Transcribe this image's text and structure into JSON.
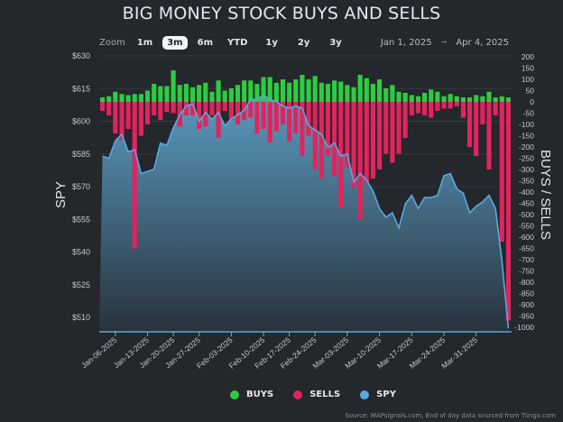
{
  "header": {
    "title": "BIG MONEY STOCK BUYS AND SELLS"
  },
  "toolbar": {
    "zoom_label": "Zoom",
    "buttons": [
      "1m",
      "3m",
      "6m",
      "YTD",
      "1y",
      "2y",
      "3y"
    ],
    "active": "3m",
    "date_from": "Jan 1, 2025",
    "date_arrow": "→",
    "date_to": "Apr 4, 2025"
  },
  "legend": {
    "items": [
      {
        "label": "BUYS",
        "color": "#2ecc40"
      },
      {
        "label": "SELLS",
        "color": "#e0245e"
      },
      {
        "label": "SPY",
        "color": "#5aa9dd"
      }
    ]
  },
  "source": "Source: MAPsignals.com, End of day data sourced from Tiingo.com",
  "chart_data": {
    "type": "bar",
    "title": "BIG MONEY STOCK BUYS AND SELLS",
    "ylabel_left": "SPY",
    "ylabel_right": "BUYS / SELLS",
    "ylim_left": [
      510,
      630
    ],
    "yticks_left": [
      "$630",
      "$615",
      "$600",
      "$585",
      "$570",
      "$555",
      "$540",
      "$525",
      "$510"
    ],
    "ylim_right": [
      -1000,
      200
    ],
    "yticks_right": [
      "200",
      "150",
      "100",
      "50",
      "0",
      "-50",
      "-100",
      "-150",
      "-200",
      "-250",
      "-300",
      "-350",
      "-400",
      "-450",
      "-500",
      "-550",
      "-600",
      "-650",
      "-700",
      "-750",
      "-800",
      "-850",
      "-900",
      "-950",
      "-1000"
    ],
    "xtick_labels": [
      "Jan-06-2025",
      "Jan-13-2025",
      "Jan-20-2025",
      "Jan-27-2025",
      "Feb-03-2025",
      "Feb-10-2025",
      "Feb-17-2025",
      "Feb-24-2025",
      "Mar-03-2025",
      "Mar-10-2025",
      "Mar-17-2025",
      "Mar-24-2025",
      "Mar-31-2025"
    ],
    "xtick_index": [
      2,
      7,
      11,
      15,
      20,
      25,
      29,
      33,
      38,
      43,
      48,
      53,
      58
    ],
    "grid": true,
    "legend_position": "bottom",
    "series": [
      {
        "name": "BUYS",
        "type": "bar",
        "color": "#2ecc40",
        "values": [
          20,
          25,
          45,
          35,
          30,
          35,
          35,
          50,
          80,
          70,
          70,
          140,
          75,
          80,
          65,
          75,
          85,
          45,
          95,
          50,
          60,
          75,
          95,
          95,
          80,
          110,
          110,
          85,
          100,
          85,
          100,
          120,
          100,
          115,
          85,
          80,
          95,
          90,
          75,
          65,
          120,
          105,
          80,
          100,
          60,
          75,
          45,
          40,
          30,
          25,
          40,
          55,
          45,
          25,
          35,
          25,
          20,
          20,
          30,
          25,
          45,
          20,
          25,
          20
        ],
        "dates": "trading days Jan-02-2025 to Apr-04-2025"
      },
      {
        "name": "SELLS",
        "type": "bar",
        "color": "#e0245e",
        "values": [
          -40,
          -60,
          -140,
          -170,
          -120,
          -650,
          -150,
          -100,
          -60,
          -80,
          -45,
          -50,
          -110,
          -60,
          -60,
          -120,
          -110,
          -60,
          -160,
          -40,
          -80,
          -100,
          -80,
          -70,
          -140,
          -120,
          -180,
          -130,
          -100,
          -175,
          -140,
          -240,
          -150,
          -300,
          -340,
          -240,
          -330,
          -470,
          -290,
          -380,
          -520,
          -360,
          -340,
          -300,
          -230,
          -270,
          -230,
          -160,
          -60,
          -50,
          -60,
          -70,
          -40,
          -30,
          -30,
          -20,
          -70,
          -200,
          -240,
          -100,
          -300,
          -60,
          -620,
          -970
        ]
      },
      {
        "name": "SPY",
        "type": "area",
        "color": "#5aa9dd",
        "values": [
          584,
          583,
          591,
          594,
          586,
          587,
          576,
          577,
          578,
          590,
          589,
          597,
          603,
          607,
          608,
          600,
          604,
          601,
          604,
          598,
          601,
          603,
          605,
          610,
          610,
          612,
          610,
          609,
          607,
          606,
          607,
          606,
          598,
          596,
          594,
          588,
          590,
          584,
          585,
          572,
          576,
          573,
          568,
          560,
          556,
          558,
          551,
          562,
          566,
          560,
          565,
          565,
          566,
          575,
          576,
          569,
          567,
          558,
          561,
          563,
          566,
          560,
          536,
          505
        ],
        "ylim": [
          510,
          630
        ]
      }
    ]
  }
}
